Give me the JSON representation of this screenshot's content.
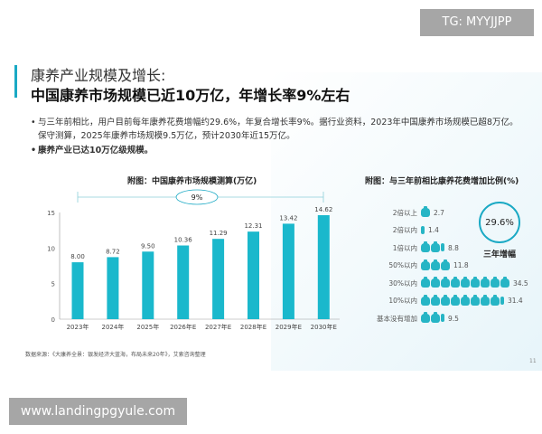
{
  "watermark_top": "TG: MYYJJPP",
  "watermark_bottom": "www.landingpgyule.com",
  "title_line1": "康养产业规模及增长:",
  "title_line2": "中国康养市场规模已近10万亿，年增长率9%左右",
  "bullets": [
    "与三年前相比，用户目前每年康养花费增幅约29.6%，年复合增长率9%。据行业资料，2023年中国康养市场规模已超8万亿。 保守测算，2025年康养市场规模9.5万亿，预计2030年近15万亿。",
    "康养产业已达10万亿级规模。"
  ],
  "source": "数据来源：《大康养全景：银发经济大蓝海，布局未来20年》，艾索咨询整理",
  "page_number": "11",
  "accent_color": "#1ab8cc",
  "chart_data": [
    {
      "type": "bar",
      "title": "附图：中国康养市场规模测算(万亿)",
      "categories": [
        "2023年",
        "2024年",
        "2025年",
        "2026年E",
        "2027年E",
        "2028年E",
        "2029年E",
        "2030年E"
      ],
      "values": [
        8.0,
        8.72,
        9.5,
        10.36,
        11.29,
        12.31,
        13.42,
        14.62
      ],
      "ylim": [
        0,
        15
      ],
      "yticks": [
        0,
        5,
        10,
        15
      ],
      "annotation": "9%",
      "grid": false
    },
    {
      "type": "pictogram",
      "title": "附图：与三年前相比康养花费增加比例(%)",
      "categories": [
        "2倍以上",
        "2倍以内",
        "1倍以内",
        "50%以内",
        "30%以内",
        "10%以内",
        "基本没有增加"
      ],
      "values": [
        2.7,
        1.4,
        8.8,
        11.8,
        34.5,
        31.4,
        9.5
      ],
      "highlight_value": "29.6%",
      "highlight_label": "三年增幅"
    }
  ]
}
